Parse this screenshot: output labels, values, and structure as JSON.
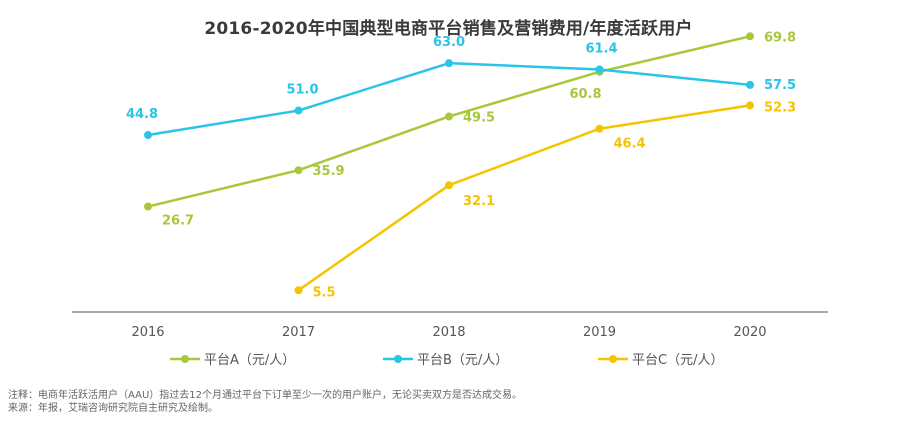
{
  "chart_data": {
    "type": "line",
    "title": "2016-2020年中国典型电商平台销售及营销费用/年度活跃用户",
    "xlabel": "",
    "ylabel": "",
    "categories": [
      "2016",
      "2017",
      "2018",
      "2019",
      "2020"
    ],
    "ylim": [
      0,
      80
    ],
    "grid": false,
    "legend_position": "bottom",
    "series": [
      {
        "name": "平台A（元/人）",
        "color": "#a8c83a",
        "values": [
          26.7,
          35.9,
          49.5,
          60.8,
          69.8
        ],
        "labels": [
          "26.7",
          "35.9",
          "49.5",
          "60.8",
          "69.8"
        ]
      },
      {
        "name": "平台B（元/人）",
        "color": "#29c4e8",
        "values": [
          44.8,
          51.0,
          63.0,
          61.4,
          57.5
        ],
        "labels": [
          "44.8",
          "51.0",
          "63.0",
          "61.4",
          "57.5"
        ]
      },
      {
        "name": "平台C（元/人）",
        "color": "#f5c400",
        "values": [
          null,
          5.5,
          32.1,
          46.4,
          52.3
        ],
        "labels": [
          null,
          "5.5",
          "32.1",
          "46.4",
          "52.3"
        ]
      }
    ]
  },
  "footnotes": {
    "note": "注释：电商年活跃活用户（AAU）指过去12个月通过平台下订单至少一次的用户账户，无论买卖双方是否达成交易。",
    "source": "来源：年报，艾瑞咨询研究院自主研究及绘制。"
  }
}
